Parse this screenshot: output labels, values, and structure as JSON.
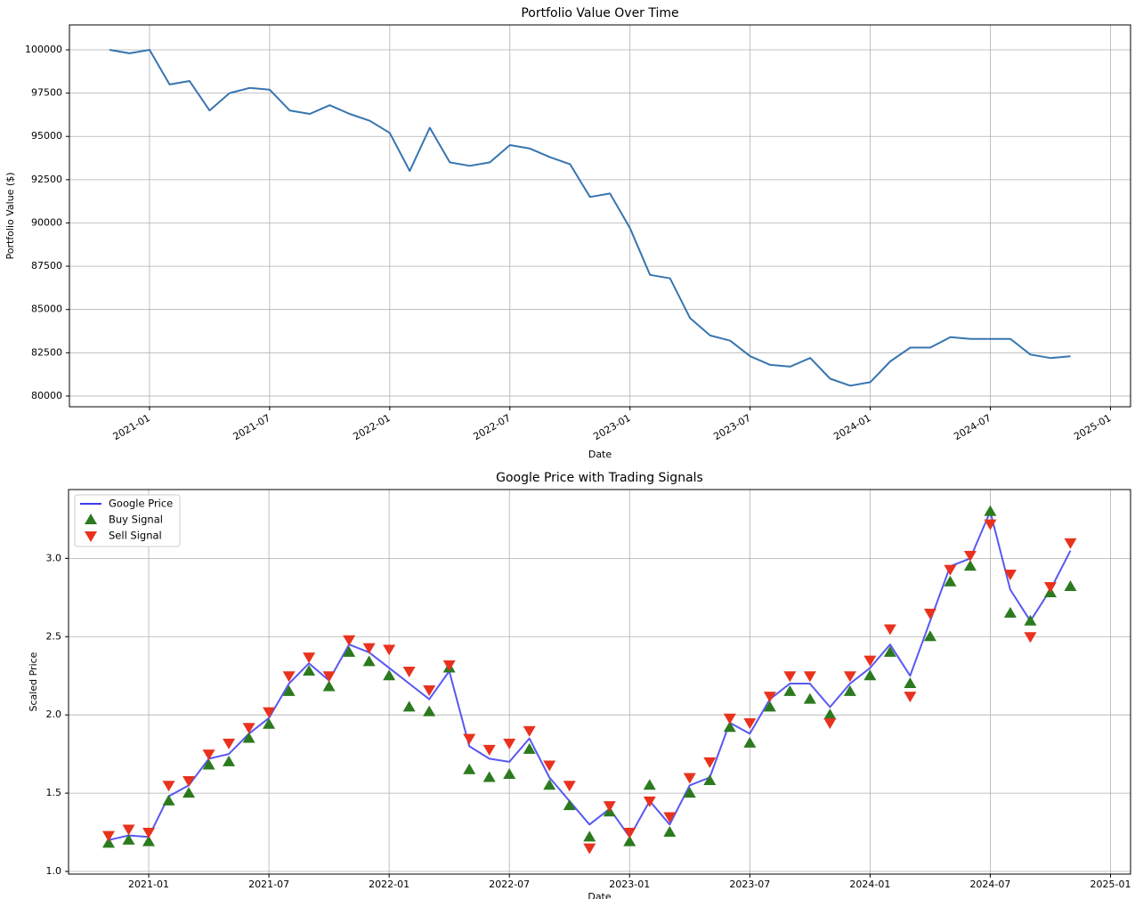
{
  "chart_data": [
    {
      "type": "line",
      "title": "Portfolio Value Over Time",
      "xlabel": "Date",
      "ylabel": "Portfolio Value ($)",
      "grid": true,
      "color": "#3775b0",
      "x": [
        "2020-11",
        "2020-12",
        "2021-01",
        "2021-02",
        "2021-03",
        "2021-04",
        "2021-05",
        "2021-06",
        "2021-07",
        "2021-08",
        "2021-09",
        "2021-10",
        "2021-11",
        "2021-12",
        "2022-01",
        "2022-02",
        "2022-03",
        "2022-04",
        "2022-05",
        "2022-06",
        "2022-07",
        "2022-08",
        "2022-09",
        "2022-10",
        "2022-11",
        "2022-12",
        "2023-01",
        "2023-02",
        "2023-03",
        "2023-04",
        "2023-05",
        "2023-06",
        "2023-07",
        "2023-08",
        "2023-09",
        "2023-10",
        "2023-11",
        "2023-12",
        "2024-01",
        "2024-02",
        "2024-03",
        "2024-04",
        "2024-05",
        "2024-06",
        "2024-07",
        "2024-08",
        "2024-09",
        "2024-10",
        "2024-11"
      ],
      "values": [
        100000,
        99800,
        100000,
        98000,
        98200,
        96500,
        97500,
        97800,
        97700,
        96500,
        96300,
        96800,
        96300,
        95900,
        95200,
        93000,
        95500,
        93500,
        93300,
        93500,
        94500,
        94300,
        93800,
        93400,
        91500,
        91700,
        89700,
        87000,
        86800,
        84500,
        83500,
        83200,
        82300,
        81800,
        81700,
        82200,
        81000,
        80600,
        80800,
        82000,
        82800,
        82800,
        83400,
        83300,
        83300,
        83300,
        82400,
        82200,
        82300
      ],
      "xlim": [
        "2020-09",
        "2025-02"
      ],
      "xticks": [
        "2021-01",
        "2021-07",
        "2022-01",
        "2022-07",
        "2023-01",
        "2023-07",
        "2024-01",
        "2024-07",
        "2025-01"
      ],
      "ylim": [
        79380,
        101440
      ],
      "yticks": [
        80000,
        82500,
        85000,
        87500,
        90000,
        92500,
        95000,
        97500,
        100000
      ]
    },
    {
      "type": "line",
      "title": "Google Price with Trading Signals",
      "xlabel": "Date",
      "ylabel": "Scaled Price",
      "grid": true,
      "legend": "upper left",
      "x": [
        "2020-11",
        "2020-12",
        "2021-01",
        "2021-02",
        "2021-03",
        "2021-04",
        "2021-05",
        "2021-06",
        "2021-07",
        "2021-08",
        "2021-09",
        "2021-10",
        "2021-11",
        "2021-12",
        "2022-01",
        "2022-02",
        "2022-03",
        "2022-04",
        "2022-05",
        "2022-06",
        "2022-07",
        "2022-08",
        "2022-09",
        "2022-10",
        "2022-11",
        "2022-12",
        "2023-01",
        "2023-02",
        "2023-03",
        "2023-04",
        "2023-05",
        "2023-06",
        "2023-07",
        "2023-08",
        "2023-09",
        "2023-10",
        "2023-11",
        "2023-12",
        "2024-01",
        "2024-02",
        "2024-03",
        "2024-04",
        "2024-05",
        "2024-06",
        "2024-07",
        "2024-08",
        "2024-09",
        "2024-10",
        "2024-11"
      ],
      "series": [
        {
          "name": "Google Price",
          "color": "#3b3bf0",
          "marker": "none",
          "values": [
            1.2,
            1.23,
            1.22,
            1.48,
            1.55,
            1.72,
            1.75,
            1.88,
            1.98,
            2.2,
            2.33,
            2.22,
            2.45,
            2.4,
            2.3,
            2.2,
            2.1,
            2.28,
            1.8,
            1.72,
            1.7,
            1.85,
            1.6,
            1.45,
            1.3,
            1.4,
            1.22,
            1.45,
            1.3,
            1.55,
            1.6,
            1.95,
            1.88,
            2.1,
            2.2,
            2.2,
            2.05,
            2.2,
            2.3,
            2.45,
            2.25,
            2.6,
            2.95,
            3.0,
            3.3,
            2.8,
            2.6,
            2.8,
            3.05
          ]
        },
        {
          "name": "Buy Signal",
          "color": "#2c7a1f",
          "marker": "triangle-up",
          "values": [
            1.18,
            1.2,
            1.19,
            1.45,
            1.5,
            1.68,
            1.7,
            1.85,
            1.94,
            2.15,
            2.28,
            2.18,
            2.4,
            2.34,
            2.25,
            2.05,
            2.02,
            2.3,
            1.65,
            1.6,
            1.62,
            1.78,
            1.55,
            1.42,
            1.22,
            1.38,
            1.19,
            1.55,
            1.25,
            1.5,
            1.58,
            1.92,
            1.82,
            2.05,
            2.15,
            2.1,
            2.0,
            2.15,
            2.25,
            2.4,
            2.2,
            2.5,
            2.85,
            2.95,
            3.3,
            2.65,
            2.6,
            2.78,
            2.82
          ]
        },
        {
          "name": "Sell Signal",
          "color": "#e8321e",
          "marker": "triangle-down",
          "values": [
            1.23,
            1.27,
            1.25,
            1.55,
            1.58,
            1.75,
            1.82,
            1.92,
            2.02,
            2.25,
            2.37,
            2.25,
            2.48,
            2.43,
            2.42,
            2.28,
            2.16,
            2.32,
            1.85,
            1.78,
            1.82,
            1.9,
            1.68,
            1.55,
            1.15,
            1.42,
            1.25,
            1.45,
            1.35,
            1.6,
            1.7,
            1.98,
            1.95,
            2.12,
            2.25,
            2.25,
            1.95,
            2.25,
            2.35,
            2.55,
            2.12,
            2.65,
            2.93,
            3.02,
            3.22,
            2.9,
            2.5,
            2.82,
            3.1
          ]
        }
      ],
      "xlim": [
        "2020-09",
        "2025-02"
      ],
      "xticks": [
        "2021-01",
        "2021-07",
        "2022-01",
        "2022-07",
        "2023-01",
        "2023-07",
        "2024-01",
        "2024-07",
        "2025-01"
      ],
      "ylim": [
        0.983,
        3.44
      ],
      "yticks": [
        {
          "value": 1,
          "label": "1.0"
        },
        1.5,
        {
          "value": 2,
          "label": "2.0"
        },
        2.5,
        {
          "value": 3,
          "label": "3.0"
        }
      ]
    }
  ]
}
